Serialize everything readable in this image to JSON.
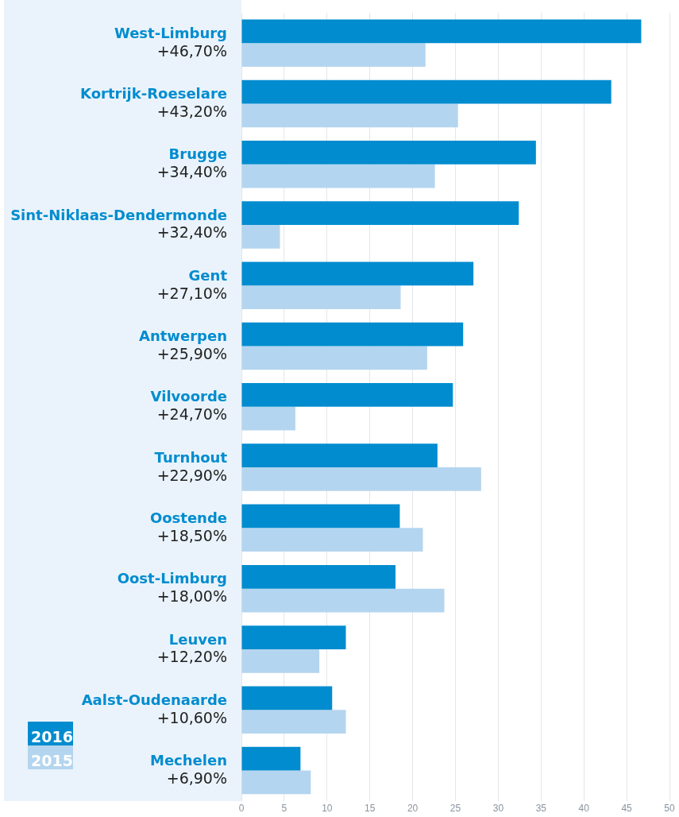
{
  "chart_data": {
    "type": "bar",
    "orientation": "horizontal",
    "categories": [
      "West-Limburg",
      "Kortrijk-Roeselare",
      "Brugge",
      "Sint-Niklaas-Dendermonde",
      "Gent",
      "Antwerpen",
      "Vilvoorde",
      "Turnhout",
      "Oostende",
      "Oost-Limburg",
      "Leuven",
      "Aalst-Oudenaarde",
      "Mechelen"
    ],
    "series": [
      {
        "name": "2016",
        "color": "#008ccf",
        "values": [
          46.7,
          43.2,
          34.4,
          32.4,
          27.1,
          25.9,
          24.7,
          22.9,
          18.5,
          18.0,
          12.2,
          10.6,
          6.9
        ],
        "value_labels": [
          "+46,70%",
          "+43,20%",
          "+34,40%",
          "+32,40%",
          "+27,10%",
          "+25,90%",
          "+24,70%",
          "+22,90%",
          "+18,50%",
          "+18,00%",
          "+12,20%",
          "+10,60%",
          "+6,90%"
        ]
      },
      {
        "name": "2015",
        "color": "#b4d5ef",
        "values": [
          21.5,
          25.3,
          22.6,
          4.5,
          18.6,
          21.7,
          6.3,
          28.0,
          21.2,
          23.7,
          9.1,
          12.2,
          8.1
        ]
      }
    ],
    "xlim": [
      0,
      50
    ],
    "xticks": [
      0,
      5,
      10,
      15,
      20,
      25,
      30,
      35,
      40,
      45,
      50
    ],
    "grid": "x",
    "legend": "bottom left"
  }
}
